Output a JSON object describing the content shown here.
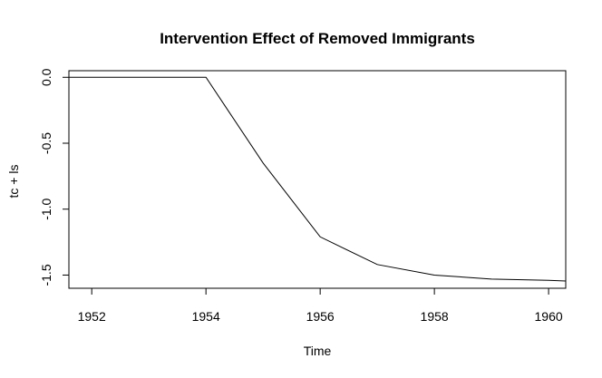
{
  "chart_data": {
    "type": "line",
    "title": "Intervention Effect of Removed Immigrants",
    "xlabel": "Time",
    "ylabel": "tc + ls",
    "xlim": [
      1951.6,
      1960.3
    ],
    "ylim": [
      -1.6,
      0.05
    ],
    "xticks": [
      1952,
      1954,
      1956,
      1958,
      1960
    ],
    "xtick_labels": [
      "1952",
      "1954",
      "1956",
      "1958",
      "1960"
    ],
    "yticks": [
      0.0,
      -0.5,
      -1.0,
      -1.5
    ],
    "ytick_labels": [
      "0.0",
      "-0.5",
      "-1.0",
      "-1.5"
    ],
    "grid": false,
    "series": [
      {
        "x": [
          1951.6,
          1954,
          1955,
          1956,
          1957,
          1958,
          1959,
          1960,
          1960.3
        ],
        "y": [
          0.0,
          0.0,
          -0.65,
          -1.21,
          -1.42,
          -1.5,
          -1.53,
          -1.54,
          -1.545
        ]
      }
    ]
  }
}
